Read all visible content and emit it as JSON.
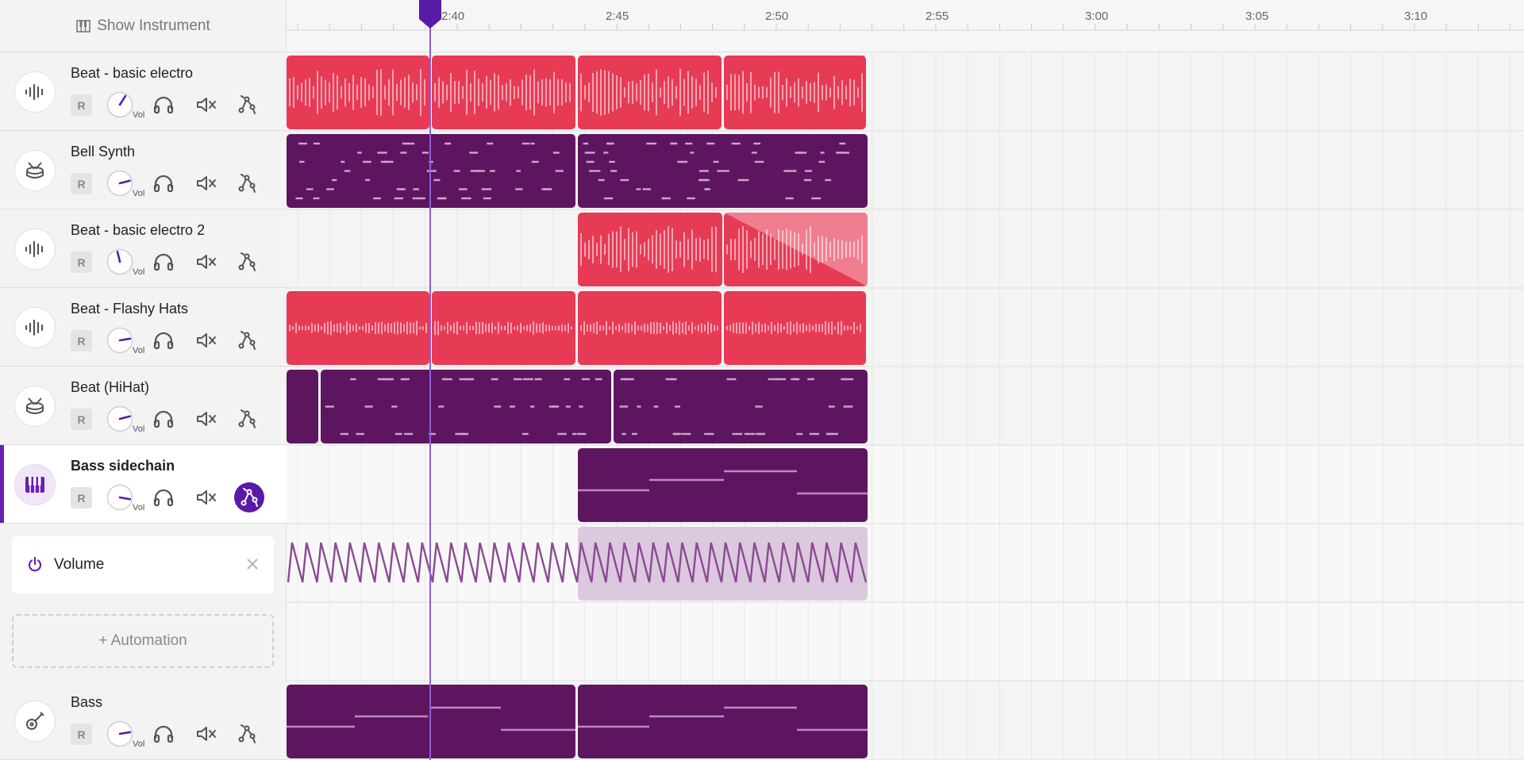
{
  "header": {
    "show_instrument_label": "Show Instrument"
  },
  "ruler": {
    "ticks": [
      "2:40",
      "2:45",
      "2:50",
      "2:55",
      "3:00",
      "3:05",
      "3:10"
    ]
  },
  "tracks": [
    {
      "name": "Beat - basic electro",
      "icon": "waveform-icon",
      "knob": 0.62
    },
    {
      "name": "Bell Synth",
      "icon": "drum-icon",
      "knob": 0.78
    },
    {
      "name": "Beat - basic electro 2",
      "icon": "waveform-icon",
      "knob": 0.45
    },
    {
      "name": "Beat - Flashy Hats",
      "icon": "waveform-icon",
      "knob": 0.8
    },
    {
      "name": "Beat (HiHat)",
      "icon": "drum-icon",
      "knob": 0.78
    },
    {
      "name": "Bass sidechain",
      "icon": "piano-icon",
      "knob": 0.87,
      "selected": true
    },
    {
      "name": "Bass",
      "icon": "guitar-icon",
      "knob": 0.8
    }
  ],
  "controls": {
    "record_label": "R",
    "volume_label": "Vol"
  },
  "automation": {
    "lane_label": "Volume",
    "add_label": "+ Automation"
  },
  "colors": {
    "audio_clip": "#e63a55",
    "midi_clip": "#5e1560",
    "accent": "#5a1aa8"
  }
}
